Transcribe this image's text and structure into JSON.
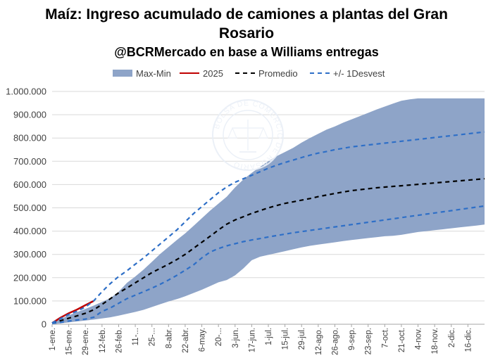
{
  "chart_data": {
    "type": "area",
    "title": "Maíz: Ingreso acumulado de camiones a plantas del Gran",
    "title_line2": "Rosario",
    "subtitle": "@BCRMercado en base a Williams entregas",
    "legend": [
      "Max-Min",
      "2025",
      "Promedio",
      "+/- 1Desvest"
    ],
    "legend_position": "top",
    "grid": true,
    "ylim": [
      0,
      1000000
    ],
    "y_ticks": [
      "0",
      "100.000",
      "200.000",
      "300.000",
      "400.000",
      "500.000",
      "600.000",
      "700.000",
      "800.000",
      "900.000",
      "1.000.000"
    ],
    "x_ticks": [
      "1-ene.",
      "15-ene.",
      "29-ene.",
      "12-feb.",
      "26-feb.",
      "11-...",
      "25-...",
      "8-abr.",
      "22-abr.",
      "6-may.",
      "20-...",
      "3-jun.",
      "17-jun.",
      "1-jul.",
      "15-jul.",
      "29-jul.",
      "12-ago.",
      "26-ago.",
      "9-sep.",
      "23-sep.",
      "7-oct.",
      "21-oct.",
      "4-nov.",
      "18-nov.",
      "2-dic.",
      "16-dic."
    ],
    "x_tick_weeks": [
      0,
      2,
      4,
      6,
      8,
      10,
      12,
      14,
      16,
      18,
      20,
      22,
      24,
      26,
      28,
      30,
      32,
      34,
      36,
      38,
      40,
      42,
      44,
      46,
      48,
      50
    ],
    "weeks": [
      0,
      1,
      2,
      3,
      4,
      5,
      6,
      7,
      8,
      9,
      10,
      11,
      12,
      13,
      14,
      15,
      16,
      17,
      18,
      19,
      20,
      21,
      22,
      23,
      24,
      25,
      26,
      27,
      28,
      29,
      30,
      31,
      32,
      33,
      34,
      35,
      36,
      37,
      38,
      39,
      40,
      41,
      42,
      43,
      44,
      45,
      46,
      47,
      48,
      49,
      50,
      51,
      52
    ],
    "max": [
      8000,
      22000,
      38000,
      52000,
      66000,
      80000,
      96000,
      112000,
      140000,
      178000,
      205000,
      235000,
      268000,
      302000,
      332000,
      362000,
      390000,
      422000,
      455000,
      488000,
      518000,
      548000,
      588000,
      622000,
      650000,
      676000,
      700000,
      722000,
      740000,
      758000,
      780000,
      800000,
      818000,
      836000,
      850000,
      866000,
      880000,
      894000,
      908000,
      922000,
      935000,
      948000,
      960000,
      966000,
      970000,
      970000,
      970000,
      970000,
      970000,
      970000,
      970000,
      970000,
      970000
    ],
    "min": [
      0,
      4000,
      8000,
      12000,
      16000,
      20000,
      25000,
      30000,
      37000,
      45000,
      53000,
      62000,
      74000,
      86000,
      98000,
      108000,
      120000,
      134000,
      148000,
      164000,
      180000,
      190000,
      210000,
      240000,
      275000,
      290000,
      298000,
      306000,
      314000,
      322000,
      330000,
      337000,
      342000,
      347000,
      352000,
      357000,
      362000,
      366000,
      370000,
      374000,
      378000,
      380000,
      384000,
      390000,
      396000,
      400000,
      404000,
      408000,
      412000,
      416000,
      420000,
      424000,
      428000
    ],
    "series": [
      {
        "name": "2025",
        "color": "#c00000",
        "values": [
          5000,
          28000,
          47000,
          63000,
          82000,
          100000
        ]
      },
      {
        "name": "Promedio",
        "color": "#000000",
        "values": [
          5000,
          15000,
          26000,
          36000,
          47000,
          62000,
          85000,
          110000,
          135000,
          156000,
          178000,
          200000,
          222000,
          240000,
          258000,
          278000,
          300000,
          326000,
          352000,
          378000,
          405000,
          430000,
          448000,
          462000,
          476000,
          488000,
          500000,
          510000,
          519000,
          526000,
          533000,
          540000,
          548000,
          555000,
          562000,
          568000,
          574000,
          578000,
          582000,
          586000,
          589000,
          592000,
          595000,
          598000,
          601000,
          604000,
          607000,
          610000,
          613000,
          616000,
          619000,
          622000,
          625000
        ]
      },
      {
        "name": "+/- 1Desvest",
        "color": "#2e6fc7",
        "band": "upper",
        "values": [
          6000,
          24000,
          42000,
          56000,
          74000,
          100000,
          140000,
          175000,
          205000,
          230000,
          258000,
          285000,
          315000,
          345000,
          375000,
          405000,
          440000,
          475000,
          505000,
          535000,
          565000,
          590000,
          610000,
          625000,
          640000,
          655000,
          670000,
          683000,
          695000,
          705000,
          716000,
          726000,
          735000,
          742000,
          750000,
          756000,
          762000,
          766000,
          770000,
          774000,
          778000,
          782000,
          786000,
          790000,
          794000,
          798000,
          802000,
          806000,
          810000,
          814000,
          818000,
          822000,
          826000
        ]
      },
      {
        "name": "+/- 1Desvest",
        "color": "#2e6fc7",
        "band": "lower",
        "values": [
          4000,
          8000,
          14000,
          18000,
          22000,
          30000,
          55000,
          70000,
          90000,
          110000,
          125000,
          140000,
          155000,
          172000,
          190000,
          210000,
          232000,
          255000,
          285000,
          310000,
          325000,
          337000,
          346000,
          355000,
          362000,
          368000,
          375000,
          381000,
          387000,
          393000,
          398000,
          403000,
          408000,
          413000,
          418000,
          423000,
          428000,
          433000,
          438000,
          443000,
          448000,
          453000,
          458000,
          463000,
          468000,
          473000,
          478000,
          483000,
          488000,
          493000,
          498000,
          503000,
          508000
        ]
      }
    ]
  },
  "colors": {
    "band_fill": "#8ea4c8",
    "grid": "#d9d9d9",
    "axis": "#a6a6a6"
  },
  "watermark": {
    "text": "BOLSA DE COMERCIO DE ROSARIO"
  }
}
